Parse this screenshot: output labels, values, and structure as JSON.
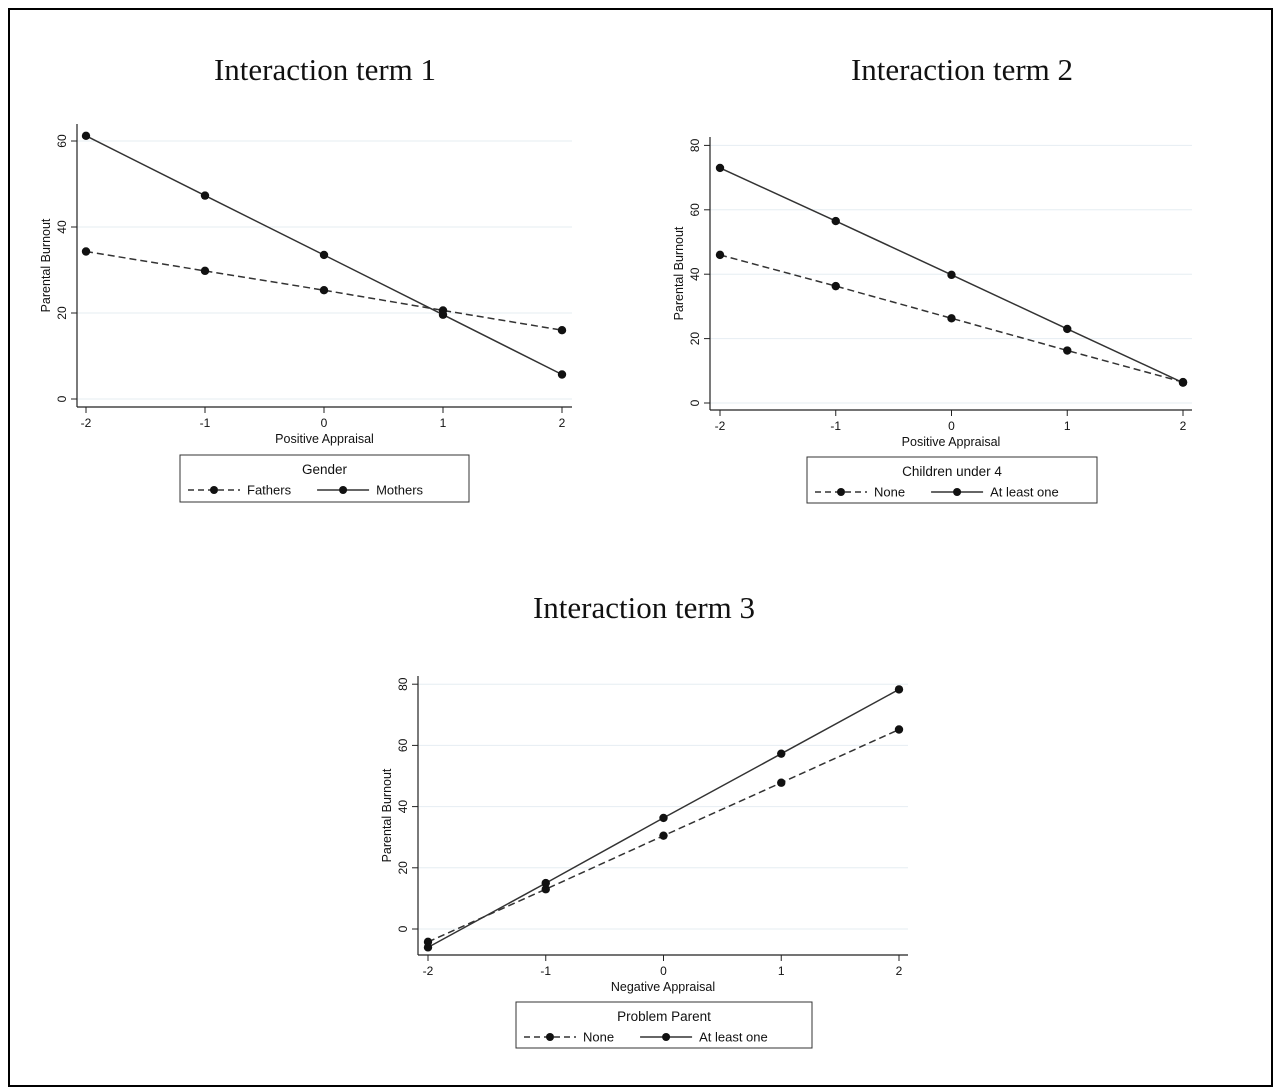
{
  "chart_data": [
    {
      "type": "line",
      "title": "Interaction term 1",
      "xlabel": "Positive Appraisal",
      "ylabel": "Parental Burnout",
      "x": [
        -2,
        -1,
        0,
        1,
        2
      ],
      "xticks": [
        "-2",
        "-1",
        "0",
        "1",
        "2"
      ],
      "yticks": [
        "0",
        "20",
        "40",
        "60"
      ],
      "ylim": [
        -2,
        62
      ],
      "grid": true,
      "legend": {
        "title": "Gender",
        "placement": "bottom"
      },
      "series": [
        {
          "name": "Fathers",
          "style": "dashed",
          "values": [
            34.3,
            29.8,
            25.3,
            20.6,
            16.0
          ]
        },
        {
          "name": "Mothers",
          "style": "solid",
          "values": [
            61.2,
            47.3,
            33.5,
            19.6,
            5.7
          ]
        }
      ]
    },
    {
      "type": "line",
      "title": "Interaction term 2",
      "xlabel": "Positive Appraisal",
      "ylabel": "Parental Burnout",
      "x": [
        -2,
        -1,
        0,
        1,
        2
      ],
      "xticks": [
        "-2",
        "-1",
        "0",
        "1",
        "2"
      ],
      "yticks": [
        "0",
        "20",
        "40",
        "60",
        "80"
      ],
      "ylim": [
        -2,
        82
      ],
      "grid": true,
      "legend": {
        "title": "Children under 4",
        "placement": "bottom"
      },
      "series": [
        {
          "name": "None",
          "style": "dashed",
          "values": [
            46.0,
            36.3,
            26.3,
            16.3,
            6.5
          ]
        },
        {
          "name": "At least one",
          "style": "solid",
          "values": [
            73.0,
            56.5,
            39.8,
            23.0,
            6.3
          ]
        }
      ]
    },
    {
      "type": "line",
      "title": "Interaction term 3",
      "xlabel": "Negative Appraisal",
      "ylabel": "Parental Burnout",
      "x": [
        -2,
        -1,
        0,
        1,
        2
      ],
      "xticks": [
        "-2",
        "-1",
        "0",
        "1",
        "2"
      ],
      "yticks": [
        "0",
        "20",
        "40",
        "60",
        "80"
      ],
      "ylim": [
        -7,
        82
      ],
      "grid": true,
      "legend": {
        "title": "Problem Parent",
        "placement": "bottom"
      },
      "series": [
        {
          "name": "None",
          "style": "dashed",
          "values": [
            -4.2,
            13.0,
            30.5,
            47.8,
            65.2
          ]
        },
        {
          "name": "At least one",
          "style": "solid",
          "values": [
            -6.0,
            15.0,
            36.3,
            57.3,
            78.3
          ]
        }
      ]
    }
  ]
}
